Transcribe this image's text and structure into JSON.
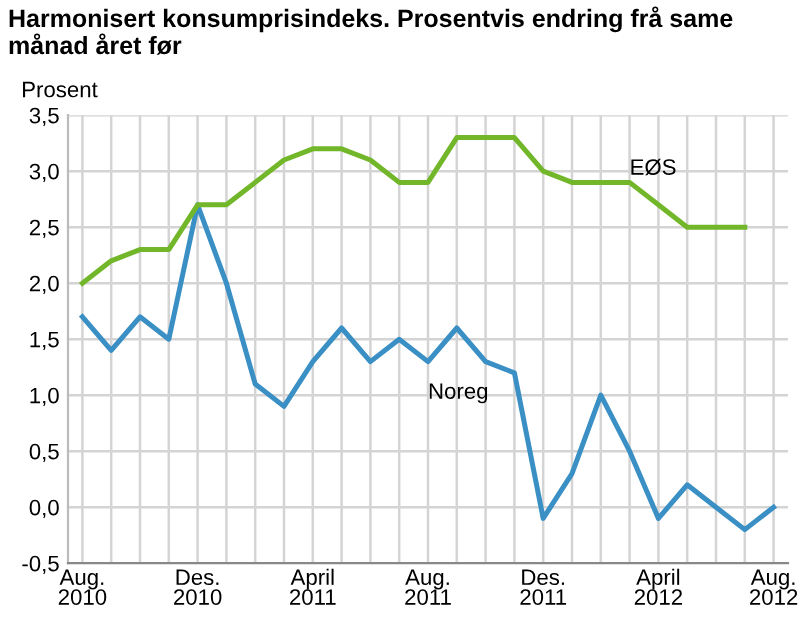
{
  "chart_data": {
    "type": "line",
    "title": "Harmonisert konsumprisindeks. Prosentvis endring frå same månad året før",
    "ylabel": "Prosent",
    "categories": [
      "Aug.\n2010",
      null,
      null,
      null,
      "Des.\n2010",
      null,
      null,
      null,
      "April\n2011",
      null,
      null,
      null,
      "Aug.\n2011",
      null,
      null,
      null,
      "Des.\n2011",
      null,
      null,
      null,
      "April\n2012",
      null,
      null,
      null,
      "Aug.\n2012"
    ],
    "series": [
      {
        "name": "Noreg",
        "color": "#3a8fc4",
        "values": [
          1.7,
          1.4,
          1.7,
          1.5,
          2.7,
          2.0,
          1.1,
          0.9,
          1.3,
          1.6,
          1.3,
          1.5,
          1.3,
          1.6,
          1.3,
          1.2,
          -0.1,
          0.3,
          1.0,
          0.5,
          -0.1,
          0.2,
          0.0,
          -0.2,
          0.0
        ]
      },
      {
        "name": "EØS",
        "color": "#72b62a",
        "values": [
          2.0,
          2.2,
          2.3,
          2.3,
          2.7,
          2.7,
          2.9,
          3.1,
          3.2,
          3.2,
          3.1,
          2.9,
          2.9,
          3.3,
          3.3,
          3.3,
          3.0,
          2.9,
          2.9,
          2.9,
          2.7,
          2.5,
          2.5,
          2.5,
          null
        ]
      }
    ],
    "ylim": [
      -0.5,
      3.5
    ],
    "yticks": [
      {
        "value": -0.5,
        "label": "-0,5"
      },
      {
        "value": 0,
        "label": "0,0"
      },
      {
        "value": 0.5,
        "label": "0,5"
      },
      {
        "value": 1,
        "label": "1,0"
      },
      {
        "value": 1.5,
        "label": "1,5"
      },
      {
        "value": 2,
        "label": "2,0"
      },
      {
        "value": 2.5,
        "label": "2,5"
      },
      {
        "value": 3,
        "label": "3,0"
      },
      {
        "value": 3.5,
        "label": "3,5"
      }
    ],
    "grid": true,
    "legend": false,
    "marker": "none",
    "line_style": "solid"
  }
}
